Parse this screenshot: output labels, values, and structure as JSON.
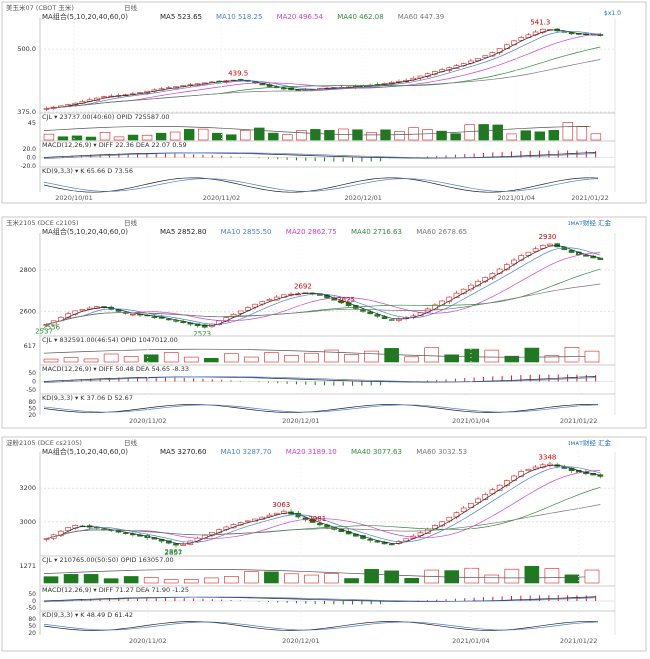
{
  "charts": [
    {
      "header": {
        "symbol": "美玉米07 (CBOT 玉米)",
        "period": "日线",
        "ma_label": "MA组合(5,10,20,40,60,0)",
        "ma_items": [
          {
            "label": "MA5 523.65",
            "color": "#222222"
          },
          {
            "label": "MA10 518.25",
            "color": "#4a7fd0"
          },
          {
            "label": "MA20 496.54",
            "color": "#d040c8"
          },
          {
            "label": "MA40 462.08",
            "color": "#2f8c3a"
          },
          {
            "label": "MA60 447.39",
            "color": "#777777"
          }
        ],
        "top_right": "$x1.0"
      },
      "yticks": [
        "500.0",
        "375.0"
      ],
      "annotations": [
        {
          "text": "541.3",
          "color": "#cc0000"
        },
        {
          "text": "439.5",
          "color": "#cc0000"
        }
      ],
      "oi_tick": "45",
      "oi_label": "CJL  ▾  23737.00(40:60)  OPID 725587.00",
      "macd_ticks": [
        "20.0",
        "0.0",
        "-20.0"
      ],
      "macd_label": "MACD(12,26,9)  ▾  DIFF 22.36  DEA 22.07  0.59",
      "kd_ticks": [],
      "kd_label": "KD(9,3,3)  ▾  K 65.66  D 73.56",
      "xaxis": [
        "2020/10/01",
        "2020/11/02",
        "2020/12/01",
        "2021/01/04",
        "2021/01/22"
      ],
      "logo": ""
    },
    {
      "header": {
        "symbol": "玉米2105 (DCE c2105)",
        "period": "日线",
        "ma_label": "MA组合(5,10,20,40,60,0)",
        "ma_items": [
          {
            "label": "MA5 2852.80",
            "color": "#222222"
          },
          {
            "label": "MA10 2855.50",
            "color": "#4a7fd0"
          },
          {
            "label": "MA20 2862.75",
            "color": "#d040c8"
          },
          {
            "label": "MA40 2716.63",
            "color": "#2f8c3a"
          },
          {
            "label": "MA60 2678.65",
            "color": "#777777"
          }
        ],
        "top_right": ""
      },
      "yticks": [
        "2800",
        "2600"
      ],
      "annotations": [
        {
          "text": "2930",
          "color": "#cc0000"
        },
        {
          "text": "2692",
          "color": "#cc0000"
        },
        {
          "text": "2625",
          "color": "#cc0000"
        },
        {
          "text": "2537",
          "color": "#2f8c3a"
        },
        {
          "text": "2523",
          "color": "#2f8c3a"
        },
        {
          "text": "2556",
          "color": "#2f8c3a"
        }
      ],
      "oi_tick": "617",
      "oi_label": "CJL  ▾  832591.00(46:54)  OPID 1047012.00",
      "macd_ticks": [
        "50",
        "0",
        "-50"
      ],
      "macd_label": "MACD(12,26,9)  ▾  DIFF 50.48  DEA 54.65  -8.33",
      "kd_ticks": [
        "80",
        "50",
        "20"
      ],
      "kd_label": "KD(9,3,3)  ▾  K 37.06  D 52.67",
      "xaxis": [
        "2020/11/02",
        "2020/12/01",
        "2021/01/04",
        "2021/01/22"
      ],
      "logo": "ɪᴍᴀᴛ财经 汇金"
    },
    {
      "header": {
        "symbol": "淀粉2105 (DCE cs2105)",
        "period": "日线",
        "ma_label": "MA组合(5,10,20,40,60,0)",
        "ma_items": [
          {
            "label": "MA5 3270.60",
            "color": "#222222"
          },
          {
            "label": "MA10 3287.70",
            "color": "#4a7fd0"
          },
          {
            "label": "MA20 3189.10",
            "color": "#d040c8"
          },
          {
            "label": "MA40 3077.63",
            "color": "#2f8c3a"
          },
          {
            "label": "MA60 3032.53",
            "color": "#777777"
          }
        ],
        "top_right": ""
      },
      "yticks": [
        "3200",
        "3000"
      ],
      "annotations": [
        {
          "text": "3348",
          "color": "#cc0000"
        },
        {
          "text": "3063",
          "color": "#cc0000"
        },
        {
          "text": "2981",
          "color": "#cc0000"
        },
        {
          "text": "2857",
          "color": "#2f8c3a"
        },
        {
          "text": "2861",
          "color": "#2f8c3a"
        }
      ],
      "oi_tick": "1271",
      "oi_label": "CJL  ▾  210765.00(50:50)  OPID 163057.00",
      "macd_ticks": [
        "50",
        "0",
        "-50"
      ],
      "macd_label": "MACD(12,26,9)  ▾  DIFF 71.27  DEA 71.90  -1.25",
      "kd_ticks": [
        "80",
        "50",
        "20"
      ],
      "kd_label": "KD(9,3,3)  ▾  K 48.49  D 61.42",
      "xaxis": [
        "2020/11/02",
        "2020/12/01",
        "2021/01/04",
        "2021/01/22"
      ],
      "logo": "ɪᴍᴀᴛ财经 汇金"
    }
  ],
  "chart_data": [
    {
      "type": "candlestick",
      "title": "美玉米07 (CBOT 玉米) 日线",
      "ylim": [
        375,
        550
      ],
      "x_range": [
        "2020/10/01",
        "2021/01/22"
      ],
      "close_path": [
        382,
        392,
        405,
        410,
        420,
        428,
        435,
        439.5,
        426,
        418,
        422,
        425,
        430,
        438,
        455,
        470,
        490,
        520,
        541.3,
        530,
        527
      ],
      "highs": [
        {
          "label": "541.3",
          "value": 541.3
        },
        {
          "label": "439.5",
          "value": 439.5
        }
      ],
      "ma": {
        "MA5": 523.65,
        "MA10": 518.25,
        "MA20": 496.54,
        "MA40": 462.08,
        "MA60": 447.39
      },
      "volume": {
        "CJL": 23737.0,
        "ratio": "40:60",
        "OPID": 725587.0
      },
      "macd": {
        "DIFF": 22.36,
        "DEA": 22.07,
        "MACD": 0.59
      },
      "kd": {
        "K": 65.66,
        "D": 73.56
      }
    },
    {
      "type": "candlestick",
      "title": "玉米2105 (DCE c2105) 日线",
      "ylim": [
        2500,
        2950
      ],
      "x_range": [
        "2020/10",
        "2021/01/22"
      ],
      "close_path": [
        2537,
        2600,
        2625,
        2590,
        2575,
        2550,
        2523,
        2580,
        2640,
        2680,
        2692,
        2650,
        2600,
        2556,
        2580,
        2650,
        2720,
        2790,
        2870,
        2930,
        2880,
        2850
      ],
      "highs": [
        {
          "label": "2930",
          "value": 2930
        },
        {
          "label": "2692",
          "value": 2692
        },
        {
          "label": "2625",
          "value": 2625
        }
      ],
      "lows": [
        {
          "label": "2537",
          "value": 2537
        },
        {
          "label": "2523",
          "value": 2523
        },
        {
          "label": "2556",
          "value": 2556
        }
      ],
      "ma": {
        "MA5": 2852.8,
        "MA10": 2855.5,
        "MA20": 2862.75,
        "MA40": 2716.63,
        "MA60": 2678.65
      },
      "volume": {
        "CJL": 832591.0,
        "ratio": "46:54",
        "OPID": 1047012.0
      },
      "macd": {
        "DIFF": 50.48,
        "DEA": 54.65,
        "MACD": -8.33
      },
      "kd": {
        "K": 37.06,
        "D": 52.67
      }
    },
    {
      "type": "candlestick",
      "title": "淀粉2105 (DCE cs2105) 日线",
      "ylim": [
        2820,
        3380
      ],
      "x_range": [
        "2020/10",
        "2021/01/22"
      ],
      "close_path": [
        2900,
        2981,
        2960,
        2930,
        2900,
        2857,
        2920,
        2980,
        3020,
        3063,
        3000,
        2950,
        2900,
        2861,
        2920,
        3000,
        3100,
        3200,
        3300,
        3348,
        3300,
        3270
      ],
      "highs": [
        {
          "label": "3348",
          "value": 3348
        },
        {
          "label": "3063",
          "value": 3063
        },
        {
          "label": "2981",
          "value": 2981
        }
      ],
      "lows": [
        {
          "label": "2857",
          "value": 2857
        },
        {
          "label": "2861",
          "value": 2861
        }
      ],
      "ma": {
        "MA5": 3270.6,
        "MA10": 3287.7,
        "MA20": 3189.1,
        "MA40": 3077.63,
        "MA60": 3032.53
      },
      "volume": {
        "CJL": 210765.0,
        "ratio": "50:50",
        "OPID": 163057.0
      },
      "macd": {
        "DIFF": 71.27,
        "DEA": 71.9,
        "MACD": -1.25
      },
      "kd": {
        "K": 48.49,
        "D": 61.42
      }
    }
  ]
}
